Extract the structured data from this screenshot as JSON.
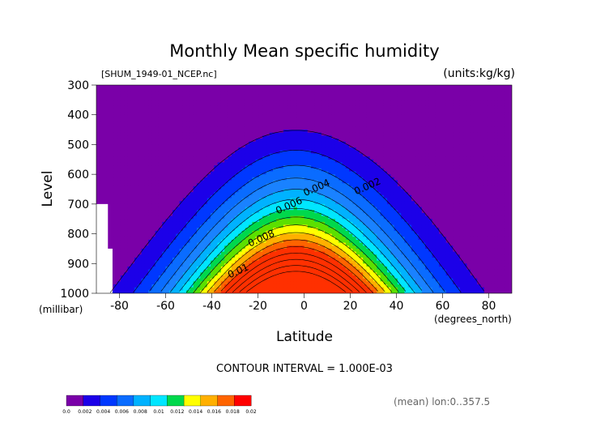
{
  "chart_data": {
    "type": "contour",
    "title": "Monthly Mean specific humidity",
    "source_label": "[SHUM_1949-01_NCEP.nc]",
    "units_label": "(units:kg/kg)",
    "xlabel": "Latitude",
    "x_unit_label": "(degrees_north)",
    "ylabel": "Level",
    "y_unit_label": "(millibar)",
    "xlim": [
      -90,
      90
    ],
    "ylim": [
      1000,
      300
    ],
    "y_scale": "pressure (inverted)",
    "x_ticks": [
      "-80",
      "-60",
      "-40",
      "-20",
      "0",
      "20",
      "40",
      "60",
      "80"
    ],
    "x_tick_values": [
      -80,
      -60,
      -40,
      -20,
      0,
      20,
      40,
      60,
      80
    ],
    "y_ticks": [
      "300",
      "400",
      "500",
      "600",
      "700",
      "800",
      "900",
      "1000"
    ],
    "y_tick_values": [
      300,
      400,
      500,
      600,
      700,
      800,
      900,
      1000
    ],
    "contour_interval_text": "CONTOUR INTERVAL = 1.000E-03",
    "footer_text": "(mean) lon:0..357.5",
    "contour_labels": [
      {
        "text": "0.002",
        "lat": 28,
        "lev": 650
      },
      {
        "text": "0.004",
        "lat": 6,
        "lev": 655
      },
      {
        "text": "0.006",
        "lat": -6,
        "lev": 715
      },
      {
        "text": "0.008",
        "lat": -18,
        "lev": 825
      },
      {
        "text": "0.01",
        "lat": -28,
        "lev": 935
      }
    ],
    "levels": [
      0,
      0.002,
      0.004,
      0.006,
      0.008,
      0.01,
      0.012,
      0.014,
      0.016,
      0.018,
      0.02
    ],
    "colorbar_labels": [
      "0.0",
      "0.002",
      "0.004",
      "0.006",
      "0.008",
      "0.01",
      "0.012",
      "0.014",
      "0.016",
      "0.018",
      "0.02"
    ],
    "colorbar_colors": [
      "#7a00a8",
      "#1c00e8",
      "#0038ff",
      "#0a6cff",
      "#00b2ff",
      "#00e6ff",
      "#00d84c",
      "#ffff00",
      "#ffb000",
      "#ff6400",
      "#ff0000"
    ],
    "contour_fill_colors": [
      "#7a00a8",
      "#1c00e8",
      "#0038ff",
      "#0a6cff",
      "#1a82ff",
      "#00b2ff",
      "#00e6ff",
      "#00d84c",
      "#5ce000",
      "#ffff00",
      "#ffb000",
      "#ff6400",
      "#ff3000"
    ],
    "contour_values": [
      0.001,
      0.002,
      0.003,
      0.004,
      0.005,
      0.006,
      0.007,
      0.008,
      0.009,
      0.01,
      0.011,
      0.012,
      0.013,
      0.014,
      0.015,
      0.016
    ],
    "missing_data": "below surface near 85°S–90°S"
  }
}
